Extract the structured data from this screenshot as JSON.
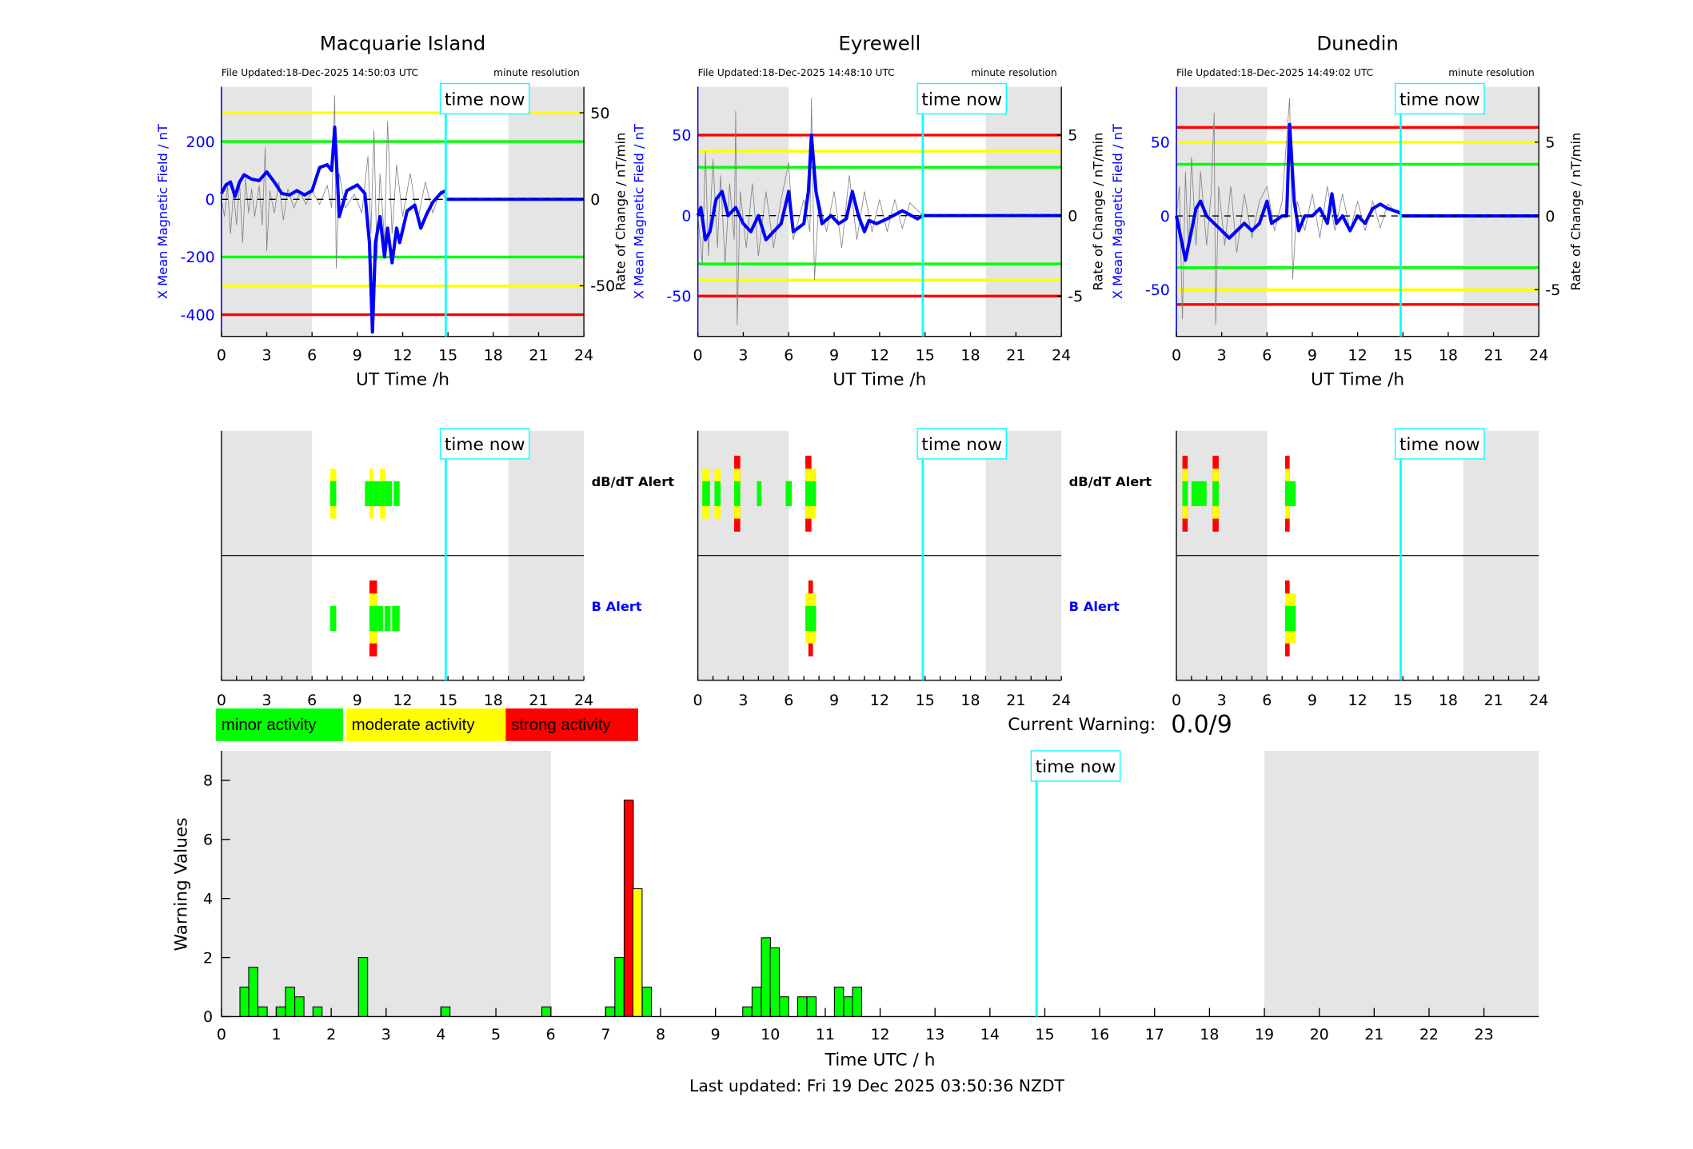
{
  "colors": {
    "minor": "#00ff00",
    "moderate": "#ffff00",
    "strong": "#ff0000",
    "mean": "#0000ff",
    "now": "#00ffff",
    "night": "#e5e5e5",
    "roc": "#808080"
  },
  "time_now_label": "time now",
  "time_now_h": 14.85,
  "night_shading_h": [
    [
      0,
      6
    ],
    [
      19,
      24
    ]
  ],
  "x_axis_label": "UT Time /h",
  "x_ticks": [
    0,
    3,
    6,
    9,
    12,
    15,
    18,
    21,
    24
  ],
  "left_ylabel": "X Mean Magnetic Field / nT",
  "right_ylabel": "Rate of Change / nT/min",
  "alerts": {
    "dbdt_label": "dB/dT Alert",
    "b_label": "B Alert"
  },
  "legend": {
    "minor": "minor activity",
    "moderate": "moderate activity",
    "strong": "strong activity"
  },
  "current_warning": {
    "label": "Current Warning:",
    "value": "0.0/9"
  },
  "footer": {
    "last_updated": "Last updated: Fri 19 Dec 2025 03:50:36 NZDT"
  },
  "chart_data": [
    {
      "type": "line",
      "title": "Macquarie Island",
      "file_updated": "File Updated:18-Dec-2025 14:50:03 UTC",
      "resolution": "minute resolution",
      "xlim": [
        0,
        24
      ],
      "ylim": [
        -475,
        390
      ],
      "yticks": [
        -400,
        -200,
        0,
        200
      ],
      "right_ylim": [
        -79.2,
        65
      ],
      "right_yticks": [
        -50,
        0,
        50
      ],
      "thresholds": [
        {
          "value": 300,
          "level": "moderate"
        },
        {
          "value": 200,
          "level": "minor"
        },
        {
          "value": -200,
          "level": "minor"
        },
        {
          "value": -300,
          "level": "moderate"
        },
        {
          "value": -400,
          "level": "strong"
        }
      ],
      "mean": [
        [
          0,
          20
        ],
        [
          0.3,
          50
        ],
        [
          0.6,
          60
        ],
        [
          0.9,
          10
        ],
        [
          1.2,
          60
        ],
        [
          1.5,
          85
        ],
        [
          2,
          70
        ],
        [
          2.5,
          65
        ],
        [
          3,
          95
        ],
        [
          3.5,
          60
        ],
        [
          4,
          20
        ],
        [
          4.5,
          15
        ],
        [
          5,
          30
        ],
        [
          5.5,
          15
        ],
        [
          6,
          30
        ],
        [
          6.5,
          110
        ],
        [
          7,
          120
        ],
        [
          7.3,
          100
        ],
        [
          7.5,
          250
        ],
        [
          7.6,
          150
        ],
        [
          7.8,
          -60
        ],
        [
          8.3,
          30
        ],
        [
          9,
          50
        ],
        [
          9.5,
          20
        ],
        [
          9.8,
          -150
        ],
        [
          10,
          -460
        ],
        [
          10.2,
          -150
        ],
        [
          10.5,
          -60
        ],
        [
          10.8,
          -200
        ],
        [
          11,
          -100
        ],
        [
          11.3,
          -220
        ],
        [
          11.6,
          -100
        ],
        [
          11.8,
          -150
        ],
        [
          12.3,
          -40
        ],
        [
          12.8,
          -20
        ],
        [
          13.2,
          -100
        ],
        [
          13.6,
          -50
        ],
        [
          14,
          -10
        ],
        [
          14.5,
          20
        ],
        [
          14.85,
          30
        ]
      ],
      "rate": [
        [
          0,
          0
        ],
        [
          0.2,
          -10
        ],
        [
          0.4,
          8
        ],
        [
          0.6,
          -20
        ],
        [
          0.8,
          5
        ],
        [
          1,
          -15
        ],
        [
          1.2,
          10
        ],
        [
          1.4,
          -25
        ],
        [
          1.6,
          12
        ],
        [
          1.8,
          -8
        ],
        [
          2,
          6
        ],
        [
          2.2,
          -10
        ],
        [
          2.5,
          8
        ],
        [
          2.7,
          -15
        ],
        [
          2.9,
          30
        ],
        [
          3.0,
          -30
        ],
        [
          3.2,
          5
        ],
        [
          3.5,
          -8
        ],
        [
          3.8,
          10
        ],
        [
          4.1,
          -12
        ],
        [
          4.4,
          6
        ],
        [
          4.8,
          -5
        ],
        [
          5.2,
          4
        ],
        [
          5.6,
          -3
        ],
        [
          6,
          5
        ],
        [
          6.5,
          -3
        ],
        [
          7,
          8
        ],
        [
          7.3,
          -5
        ],
        [
          7.5,
          60
        ],
        [
          7.6,
          -40
        ],
        [
          7.8,
          15
        ],
        [
          8.2,
          -5
        ],
        [
          8.8,
          3
        ],
        [
          9.3,
          -8
        ],
        [
          9.7,
          25
        ],
        [
          9.9,
          -20
        ],
        [
          10.1,
          40
        ],
        [
          10.3,
          -35
        ],
        [
          10.5,
          15
        ],
        [
          10.8,
          -25
        ],
        [
          11,
          45
        ],
        [
          11.3,
          -20
        ],
        [
          11.6,
          20
        ],
        [
          12,
          -10
        ],
        [
          12.5,
          15
        ],
        [
          13,
          -12
        ],
        [
          13.5,
          10
        ],
        [
          14,
          -8
        ],
        [
          14.5,
          5
        ],
        [
          14.85,
          0
        ]
      ],
      "dbdt_alerts": [
        [
          7.2,
          7.6,
          2
        ],
        [
          9.5,
          9.8,
          1
        ],
        [
          9.8,
          10.05,
          2
        ],
        [
          10.05,
          10.5,
          1
        ],
        [
          10.5,
          10.85,
          2
        ],
        [
          10.85,
          11.3,
          1
        ],
        [
          11.4,
          11.8,
          1
        ]
      ],
      "b_alerts": [
        [
          7.2,
          7.6,
          1
        ],
        [
          9.8,
          10.3,
          3
        ],
        [
          10.3,
          10.7,
          1
        ],
        [
          10.8,
          11.2,
          1
        ],
        [
          11.3,
          11.8,
          1
        ]
      ]
    },
    {
      "type": "line",
      "title": "Eyrewell",
      "file_updated": "File Updated:18-Dec-2025 14:48:10 UTC",
      "resolution": "minute resolution",
      "xlim": [
        0,
        24
      ],
      "ylim": [
        -75,
        80
      ],
      "yticks": [
        -50,
        0,
        50
      ],
      "right_ylim": [
        -7.5,
        8
      ],
      "right_yticks": [
        -5,
        0,
        5
      ],
      "thresholds": [
        {
          "value": 50,
          "level": "strong"
        },
        {
          "value": 40,
          "level": "moderate"
        },
        {
          "value": 30,
          "level": "minor"
        },
        {
          "value": -30,
          "level": "minor"
        },
        {
          "value": -40,
          "level": "moderate"
        },
        {
          "value": -50,
          "level": "strong"
        }
      ],
      "mean": [
        [
          0,
          0
        ],
        [
          0.2,
          5
        ],
        [
          0.5,
          -15
        ],
        [
          0.8,
          -10
        ],
        [
          1.2,
          10
        ],
        [
          1.6,
          15
        ],
        [
          2,
          0
        ],
        [
          2.5,
          5
        ],
        [
          3,
          -5
        ],
        [
          3.5,
          -10
        ],
        [
          4,
          0
        ],
        [
          4.5,
          -15
        ],
        [
          5,
          -10
        ],
        [
          5.5,
          -5
        ],
        [
          6,
          15
        ],
        [
          6.3,
          -10
        ],
        [
          7,
          -5
        ],
        [
          7.3,
          15
        ],
        [
          7.5,
          50
        ],
        [
          7.8,
          15
        ],
        [
          8.2,
          -5
        ],
        [
          8.8,
          0
        ],
        [
          9.3,
          -5
        ],
        [
          9.8,
          -2
        ],
        [
          10.2,
          15
        ],
        [
          10.6,
          0
        ],
        [
          11,
          -10
        ],
        [
          11.3,
          -3
        ],
        [
          11.8,
          -5
        ],
        [
          12.5,
          -2
        ],
        [
          13.5,
          3
        ],
        [
          14.5,
          -2
        ],
        [
          14.85,
          0
        ]
      ],
      "rate": [
        [
          0,
          0
        ],
        [
          0.3,
          -3
        ],
        [
          0.5,
          4
        ],
        [
          0.7,
          -2.5
        ],
        [
          1,
          3.5
        ],
        [
          1.3,
          -2
        ],
        [
          1.5,
          2.5
        ],
        [
          1.8,
          -3
        ],
        [
          2.1,
          2
        ],
        [
          2.4,
          -1.5
        ],
        [
          2.5,
          6.5
        ],
        [
          2.6,
          -6.8
        ],
        [
          2.8,
          1.5
        ],
        [
          3.2,
          -2
        ],
        [
          3.6,
          2
        ],
        [
          4,
          -2.5
        ],
        [
          4.5,
          1.5
        ],
        [
          5,
          -2
        ],
        [
          5.5,
          1
        ],
        [
          6,
          3.3
        ],
        [
          6.3,
          -1.5
        ],
        [
          7,
          1
        ],
        [
          7.4,
          -1
        ],
        [
          7.5,
          7.3
        ],
        [
          7.7,
          -4
        ],
        [
          8,
          1
        ],
        [
          8.5,
          -1
        ],
        [
          9,
          1.5
        ],
        [
          9.5,
          -2
        ],
        [
          10,
          2.5
        ],
        [
          10.5,
          -1.5
        ],
        [
          11,
          1.5
        ],
        [
          11.5,
          -1
        ],
        [
          12,
          1
        ],
        [
          12.5,
          -1
        ],
        [
          13,
          1
        ],
        [
          13.5,
          -0.8
        ],
        [
          14,
          0.8
        ],
        [
          14.85,
          0
        ]
      ],
      "dbdt_alerts": [
        [
          0.3,
          0.8,
          2
        ],
        [
          1.1,
          1.5,
          2
        ],
        [
          2.4,
          2.8,
          3
        ],
        [
          3.9,
          4.2,
          1
        ],
        [
          5.8,
          6.2,
          1
        ],
        [
          7.1,
          7.5,
          3
        ],
        [
          7.5,
          7.8,
          2
        ]
      ],
      "b_alerts": [
        [
          7.1,
          7.3,
          2
        ],
        [
          7.3,
          7.6,
          3
        ],
        [
          7.6,
          7.8,
          2
        ]
      ]
    },
    {
      "type": "line",
      "title": "Dunedin",
      "file_updated": "File Updated:18-Dec-2025 14:49:02 UTC",
      "resolution": "minute resolution",
      "xlim": [
        0,
        24
      ],
      "ylim": [
        -81.6,
        87.5
      ],
      "yticks": [
        -50,
        0,
        50
      ],
      "right_ylim": [
        -8.16,
        8.75
      ],
      "right_yticks": [
        -5,
        0,
        5
      ],
      "thresholds": [
        {
          "value": 60,
          "level": "strong"
        },
        {
          "value": 50,
          "level": "moderate"
        },
        {
          "value": 35,
          "level": "minor"
        },
        {
          "value": -35,
          "level": "minor"
        },
        {
          "value": -50,
          "level": "moderate"
        },
        {
          "value": -60,
          "level": "strong"
        }
      ],
      "mean": [
        [
          0,
          0
        ],
        [
          0.4,
          -20
        ],
        [
          0.6,
          -30
        ],
        [
          1,
          -10
        ],
        [
          1.3,
          5
        ],
        [
          1.6,
          10
        ],
        [
          2,
          0
        ],
        [
          2.5,
          -5
        ],
        [
          3,
          -10
        ],
        [
          3.5,
          -15
        ],
        [
          4,
          -10
        ],
        [
          4.5,
          -5
        ],
        [
          5,
          -10
        ],
        [
          5.5,
          -5
        ],
        [
          6,
          10
        ],
        [
          6.3,
          -5
        ],
        [
          7,
          0
        ],
        [
          7.3,
          0
        ],
        [
          7.5,
          62
        ],
        [
          7.8,
          10
        ],
        [
          8.1,
          -10
        ],
        [
          8.5,
          0
        ],
        [
          9,
          0
        ],
        [
          9.5,
          5
        ],
        [
          10,
          -5
        ],
        [
          10.3,
          15
        ],
        [
          10.6,
          -5
        ],
        [
          11,
          0
        ],
        [
          11.5,
          -10
        ],
        [
          12,
          0
        ],
        [
          12.5,
          -5
        ],
        [
          13,
          5
        ],
        [
          13.5,
          8
        ],
        [
          14,
          5
        ],
        [
          14.85,
          2
        ]
      ],
      "rate": [
        [
          0,
          0
        ],
        [
          0.2,
          2
        ],
        [
          0.4,
          -7
        ],
        [
          0.6,
          3
        ],
        [
          0.8,
          -2.5
        ],
        [
          1,
          4
        ],
        [
          1.3,
          -2
        ],
        [
          1.6,
          3
        ],
        [
          2,
          -2
        ],
        [
          2.3,
          1.5
        ],
        [
          2.5,
          7
        ],
        [
          2.6,
          -7.4
        ],
        [
          2.8,
          2
        ],
        [
          3.2,
          -2
        ],
        [
          3.6,
          2
        ],
        [
          4,
          -2.5
        ],
        [
          4.5,
          1.5
        ],
        [
          5,
          -1.5
        ],
        [
          5.5,
          1
        ],
        [
          6,
          2
        ],
        [
          6.5,
          -1
        ],
        [
          7,
          1
        ],
        [
          7.5,
          8
        ],
        [
          7.7,
          -4.3
        ],
        [
          8,
          1
        ],
        [
          8.5,
          -1
        ],
        [
          9,
          1.5
        ],
        [
          9.5,
          -1.5
        ],
        [
          10,
          2
        ],
        [
          10.5,
          -1
        ],
        [
          11,
          1.5
        ],
        [
          11.5,
          -1
        ],
        [
          12,
          1
        ],
        [
          12.5,
          -1
        ],
        [
          13,
          1
        ],
        [
          13.5,
          -0.8
        ],
        [
          14,
          0.8
        ],
        [
          14.85,
          0
        ]
      ],
      "dbdt_alerts": [
        [
          0.4,
          0.75,
          3
        ],
        [
          1.0,
          2.0,
          1
        ],
        [
          2.4,
          2.8,
          3
        ],
        [
          7.2,
          7.5,
          3
        ],
        [
          7.5,
          7.9,
          1
        ]
      ],
      "b_alerts": [
        [
          7.2,
          7.5,
          3
        ],
        [
          7.5,
          7.9,
          2
        ]
      ]
    },
    {
      "type": "bar",
      "xlabel": "Time UTC / h",
      "ylabel": "Warning Values",
      "xlim": [
        0,
        24
      ],
      "ylim": [
        0,
        9
      ],
      "xticks": [
        0,
        1,
        2,
        3,
        4,
        5,
        6,
        7,
        8,
        9,
        10,
        11,
        12,
        13,
        14,
        15,
        16,
        17,
        18,
        19,
        20,
        21,
        22,
        23
      ],
      "yticks": [
        0,
        2,
        4,
        6,
        8
      ],
      "bin_width_h": 0.1667,
      "bars": [
        [
          0.42,
          1.0,
          "minor"
        ],
        [
          0.58,
          1.67,
          "minor"
        ],
        [
          0.75,
          0.33,
          "minor"
        ],
        [
          1.08,
          0.33,
          "minor"
        ],
        [
          1.25,
          1.0,
          "minor"
        ],
        [
          1.42,
          0.67,
          "minor"
        ],
        [
          1.75,
          0.33,
          "minor"
        ],
        [
          2.58,
          2.0,
          "minor"
        ],
        [
          4.08,
          0.33,
          "minor"
        ],
        [
          5.92,
          0.33,
          "minor"
        ],
        [
          7.08,
          0.33,
          "minor"
        ],
        [
          7.25,
          2.0,
          "minor"
        ],
        [
          7.42,
          7.33,
          "strong"
        ],
        [
          7.58,
          4.33,
          "moderate"
        ],
        [
          7.75,
          1.0,
          "minor"
        ],
        [
          9.58,
          0.33,
          "minor"
        ],
        [
          9.75,
          1.0,
          "minor"
        ],
        [
          9.92,
          2.67,
          "minor"
        ],
        [
          10.08,
          2.33,
          "minor"
        ],
        [
          10.25,
          0.67,
          "minor"
        ],
        [
          10.58,
          0.67,
          "minor"
        ],
        [
          10.75,
          0.67,
          "minor"
        ],
        [
          11.25,
          1.0,
          "minor"
        ],
        [
          11.42,
          0.67,
          "minor"
        ],
        [
          11.58,
          1.0,
          "minor"
        ]
      ]
    }
  ]
}
